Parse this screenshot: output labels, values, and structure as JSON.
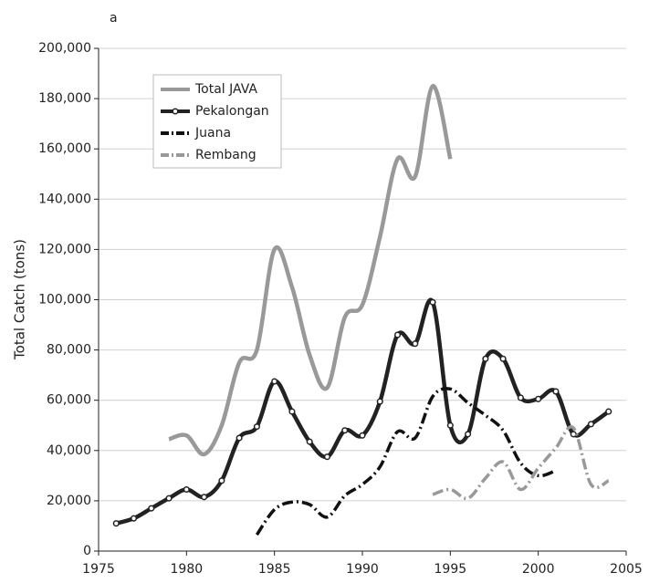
{
  "chart_data": {
    "type": "line",
    "panel_label": "a",
    "y_label": "Total Catch (tons)",
    "xlim": [
      1975,
      2005
    ],
    "xticks": [
      1975,
      1980,
      1985,
      1990,
      1995,
      2000,
      2005
    ],
    "ylim": [
      0,
      200000
    ],
    "yticks": [
      0,
      {
        "value": 20000,
        "label": "20,000"
      },
      {
        "value": 40000,
        "label": "40,000"
      },
      {
        "value": 60000,
        "label": "60,000"
      },
      {
        "value": 80000,
        "label": "80,000"
      },
      {
        "value": 100000,
        "label": "100,000"
      },
      {
        "value": 120000,
        "label": "120,000"
      },
      {
        "value": 140000,
        "label": "140,000"
      },
      {
        "value": 160000,
        "label": "160,000"
      },
      {
        "value": 180000,
        "label": "180,000"
      },
      {
        "value": 200000,
        "label": "200,000"
      }
    ],
    "grid": true,
    "legend": "upper left",
    "series": [
      {
        "name": "Total JAVA",
        "color": "#999999",
        "linestyle": "solid",
        "marker": "none",
        "x": [
          1979,
          1980,
          1981,
          1982,
          1983,
          1984,
          1985,
          1986,
          1987,
          1988,
          1989,
          1990,
          1991,
          1992,
          1993,
          1994,
          1995
        ],
        "values": [
          44500,
          46000,
          38500,
          50000,
          75000,
          80000,
          120000,
          105000,
          78000,
          65000,
          93000,
          98000,
          125000,
          156000,
          149000,
          185000,
          156000
        ]
      },
      {
        "name": "Pekalongan",
        "color": "#222222",
        "linestyle": "solid",
        "marker": "circle",
        "x": [
          1976,
          1977,
          1978,
          1979,
          1980,
          1981,
          1982,
          1983,
          1984,
          1985,
          1986,
          1987,
          1988,
          1989,
          1990,
          1991,
          1992,
          1993,
          1994,
          1995,
          1996,
          1997,
          1998,
          1999,
          2000,
          2001,
          2002,
          2003,
          2004
        ],
        "values": [
          11000,
          13000,
          17000,
          21000,
          24500,
          21500,
          28000,
          45000,
          49500,
          67500,
          55500,
          43500,
          37500,
          48000,
          46000,
          59500,
          86000,
          82500,
          99000,
          50000,
          46500,
          76500,
          76500,
          61000,
          60500,
          63500,
          46500,
          50500,
          55500
        ]
      },
      {
        "name": "Juana",
        "color": "#111111",
        "linestyle": "dashdot",
        "marker": "none",
        "x": [
          1984,
          1985,
          1986,
          1987,
          1988,
          1989,
          1990,
          1991,
          1992,
          1993,
          1994,
          1995,
          1996,
          1997,
          1998,
          1999,
          2000,
          2001
        ],
        "values": [
          6500,
          16500,
          19500,
          18500,
          13500,
          22000,
          26500,
          33500,
          47500,
          45000,
          61500,
          64500,
          59000,
          54000,
          48000,
          35000,
          30000,
          32000
        ]
      },
      {
        "name": "Rembang",
        "color": "#999999",
        "linestyle": "dashdot",
        "marker": "none",
        "x": [
          1994,
          1995,
          1996,
          1997,
          1998,
          1999,
          2000,
          2001,
          2002,
          2003,
          2004
        ],
        "values": [
          22500,
          24500,
          21000,
          29000,
          35500,
          24500,
          33000,
          41000,
          49000,
          26500,
          28000
        ]
      }
    ]
  }
}
